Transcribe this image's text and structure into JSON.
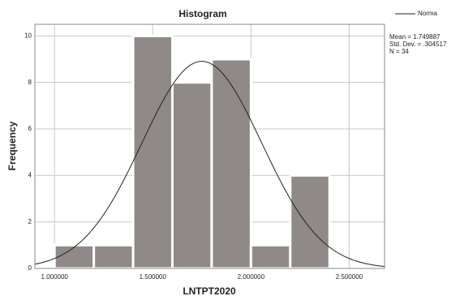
{
  "chart_data": {
    "type": "histogram",
    "title": "Histogram",
    "xlabel": "LNTPT2020",
    "ylabel": "Frequency",
    "bins": [
      1.0,
      1.2,
      1.4,
      1.6,
      1.8,
      2.0,
      2.2,
      2.4
    ],
    "values": [
      1,
      1,
      10,
      8,
      9,
      1,
      4
    ],
    "color": "#8f8987",
    "xlim": [
      0.9,
      2.68
    ],
    "ylim": [
      0,
      10.5
    ],
    "xticks": [
      {
        "value": 1.0,
        "label": "1.000000"
      },
      {
        "value": 1.5,
        "label": "1.500000"
      },
      {
        "value": 2.0,
        "label": "2.000000"
      },
      {
        "value": 2.5,
        "label": "2.500000"
      }
    ],
    "yticks": [
      0,
      2,
      4,
      6,
      8,
      10
    ],
    "grid": true,
    "normal_curve": {
      "name": "Norma",
      "color": "#222222",
      "mean": 1.749887,
      "std": 0.304517,
      "n": 34
    },
    "stats_labels": [
      "Mean = 1.749887",
      "Std. Dev. = .304517",
      "N = 34"
    ]
  }
}
